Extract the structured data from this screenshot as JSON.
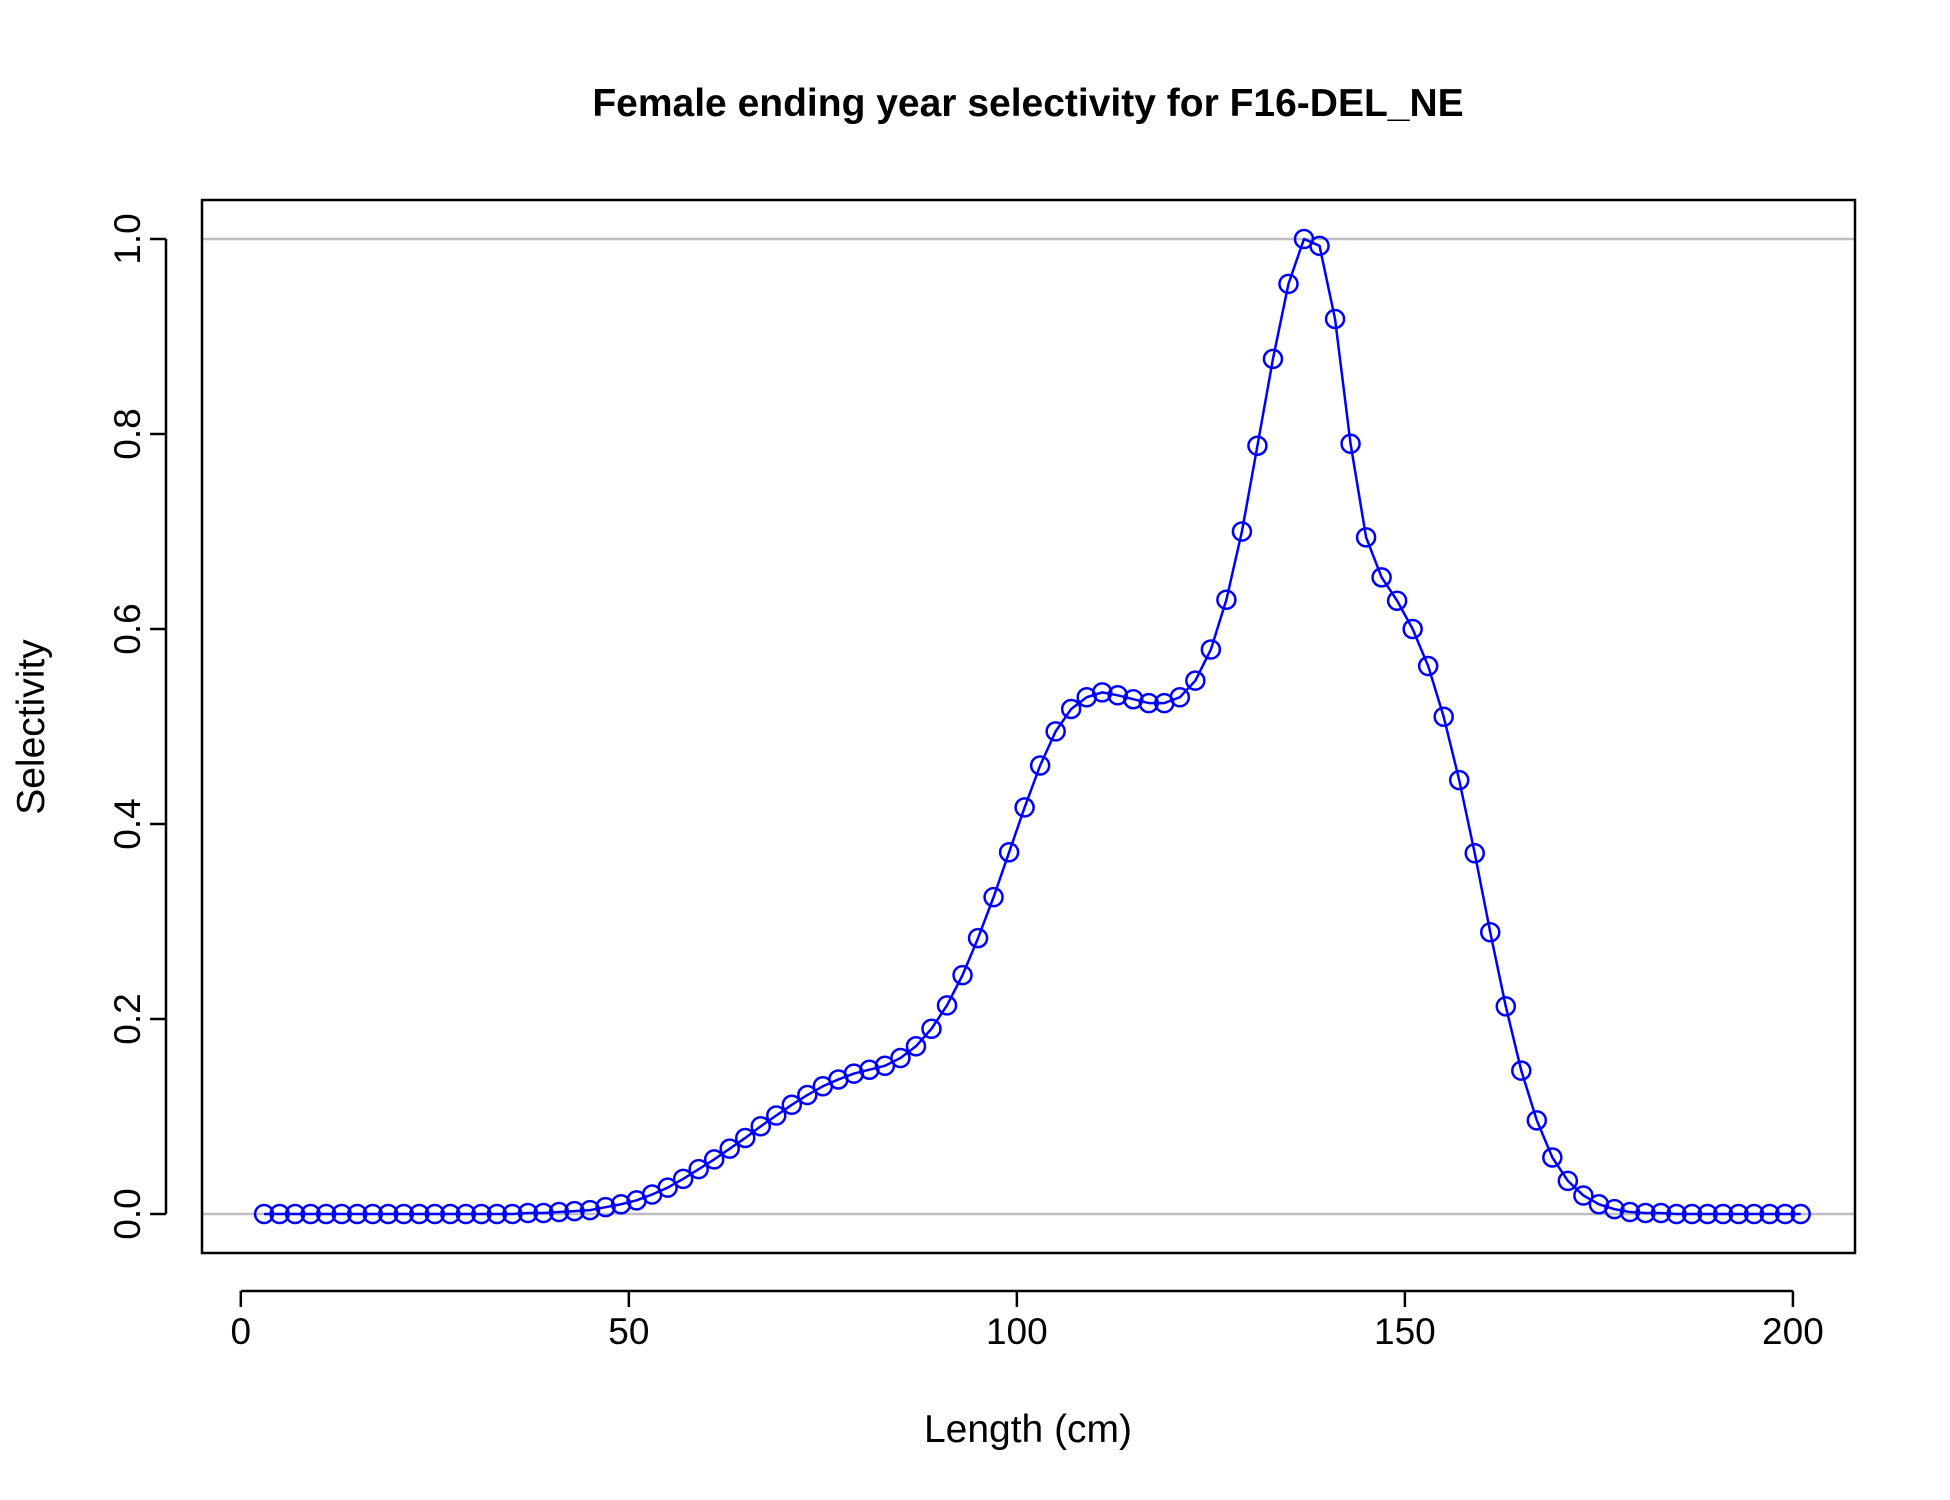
{
  "chart_data": {
    "type": "line",
    "title": "Female ending year selectivity for F16-DEL_NE",
    "xlabel": "Length (cm)",
    "ylabel": "Selectivity",
    "xlim": [
      -5,
      208
    ],
    "ylim": [
      -0.04,
      1.04
    ],
    "xticks": [
      0,
      50,
      100,
      150,
      200
    ],
    "xtick_labels": [
      "0",
      "50",
      "100",
      "150",
      "200"
    ],
    "yticks": [
      0,
      0.2,
      0.4,
      0.6,
      0.8,
      1.0
    ],
    "ytick_labels": [
      "0.0",
      "0.2",
      "0.4",
      "0.6",
      "0.8",
      "1.0"
    ],
    "reference_lines_y": [
      0,
      1
    ],
    "colors": {
      "series": "#0000ff",
      "reference": "#bebebe",
      "frame": "#000000"
    },
    "marker": "open-circle",
    "series": [
      {
        "x": [
          3,
          5,
          7,
          9,
          11,
          13,
          15,
          17,
          19,
          21,
          23,
          25,
          27,
          29,
          31,
          33,
          35,
          37,
          39,
          41,
          43,
          45,
          47,
          49,
          51,
          53,
          55,
          57,
          59,
          61,
          63,
          65,
          67,
          69,
          71,
          73,
          75,
          77,
          79,
          81,
          83,
          85,
          87,
          89,
          91,
          93,
          95,
          97,
          99,
          101,
          103,
          105,
          107,
          109,
          111,
          113,
          115,
          117,
          119,
          121,
          123,
          125,
          127,
          129,
          131,
          133,
          135,
          137,
          139,
          141,
          143,
          145,
          147,
          149,
          151,
          153,
          155,
          157,
          159,
          161,
          163,
          165,
          167,
          169,
          171,
          173,
          175,
          177,
          179,
          181,
          183,
          185,
          187,
          189,
          191,
          193,
          195,
          197,
          199,
          201
        ],
        "y": [
          0,
          0,
          0,
          0,
          0,
          0,
          0,
          0,
          0,
          0,
          0,
          0,
          0,
          0,
          0,
          0,
          0,
          0.001,
          0.001,
          0.002,
          0.003,
          0.004,
          0.007,
          0.01,
          0.014,
          0.02,
          0.027,
          0.036,
          0.046,
          0.056,
          0.067,
          0.078,
          0.09,
          0.101,
          0.112,
          0.122,
          0.131,
          0.138,
          0.144,
          0.148,
          0.152,
          0.16,
          0.172,
          0.19,
          0.214,
          0.245,
          0.283,
          0.325,
          0.371,
          0.417,
          0.46,
          0.495,
          0.518,
          0.53,
          0.535,
          0.532,
          0.528,
          0.524,
          0.524,
          0.53,
          0.547,
          0.579,
          0.63,
          0.7,
          0.788,
          0.877,
          0.954,
          1.0,
          0.993,
          0.918,
          0.79,
          0.694,
          0.653,
          0.629,
          0.6,
          0.562,
          0.51,
          0.445,
          0.37,
          0.289,
          0.213,
          0.147,
          0.096,
          0.058,
          0.034,
          0.019,
          0.01,
          0.005,
          0.002,
          0.001,
          0.001,
          0,
          0,
          0,
          0,
          0,
          0,
          0,
          0,
          0
        ]
      }
    ]
  }
}
